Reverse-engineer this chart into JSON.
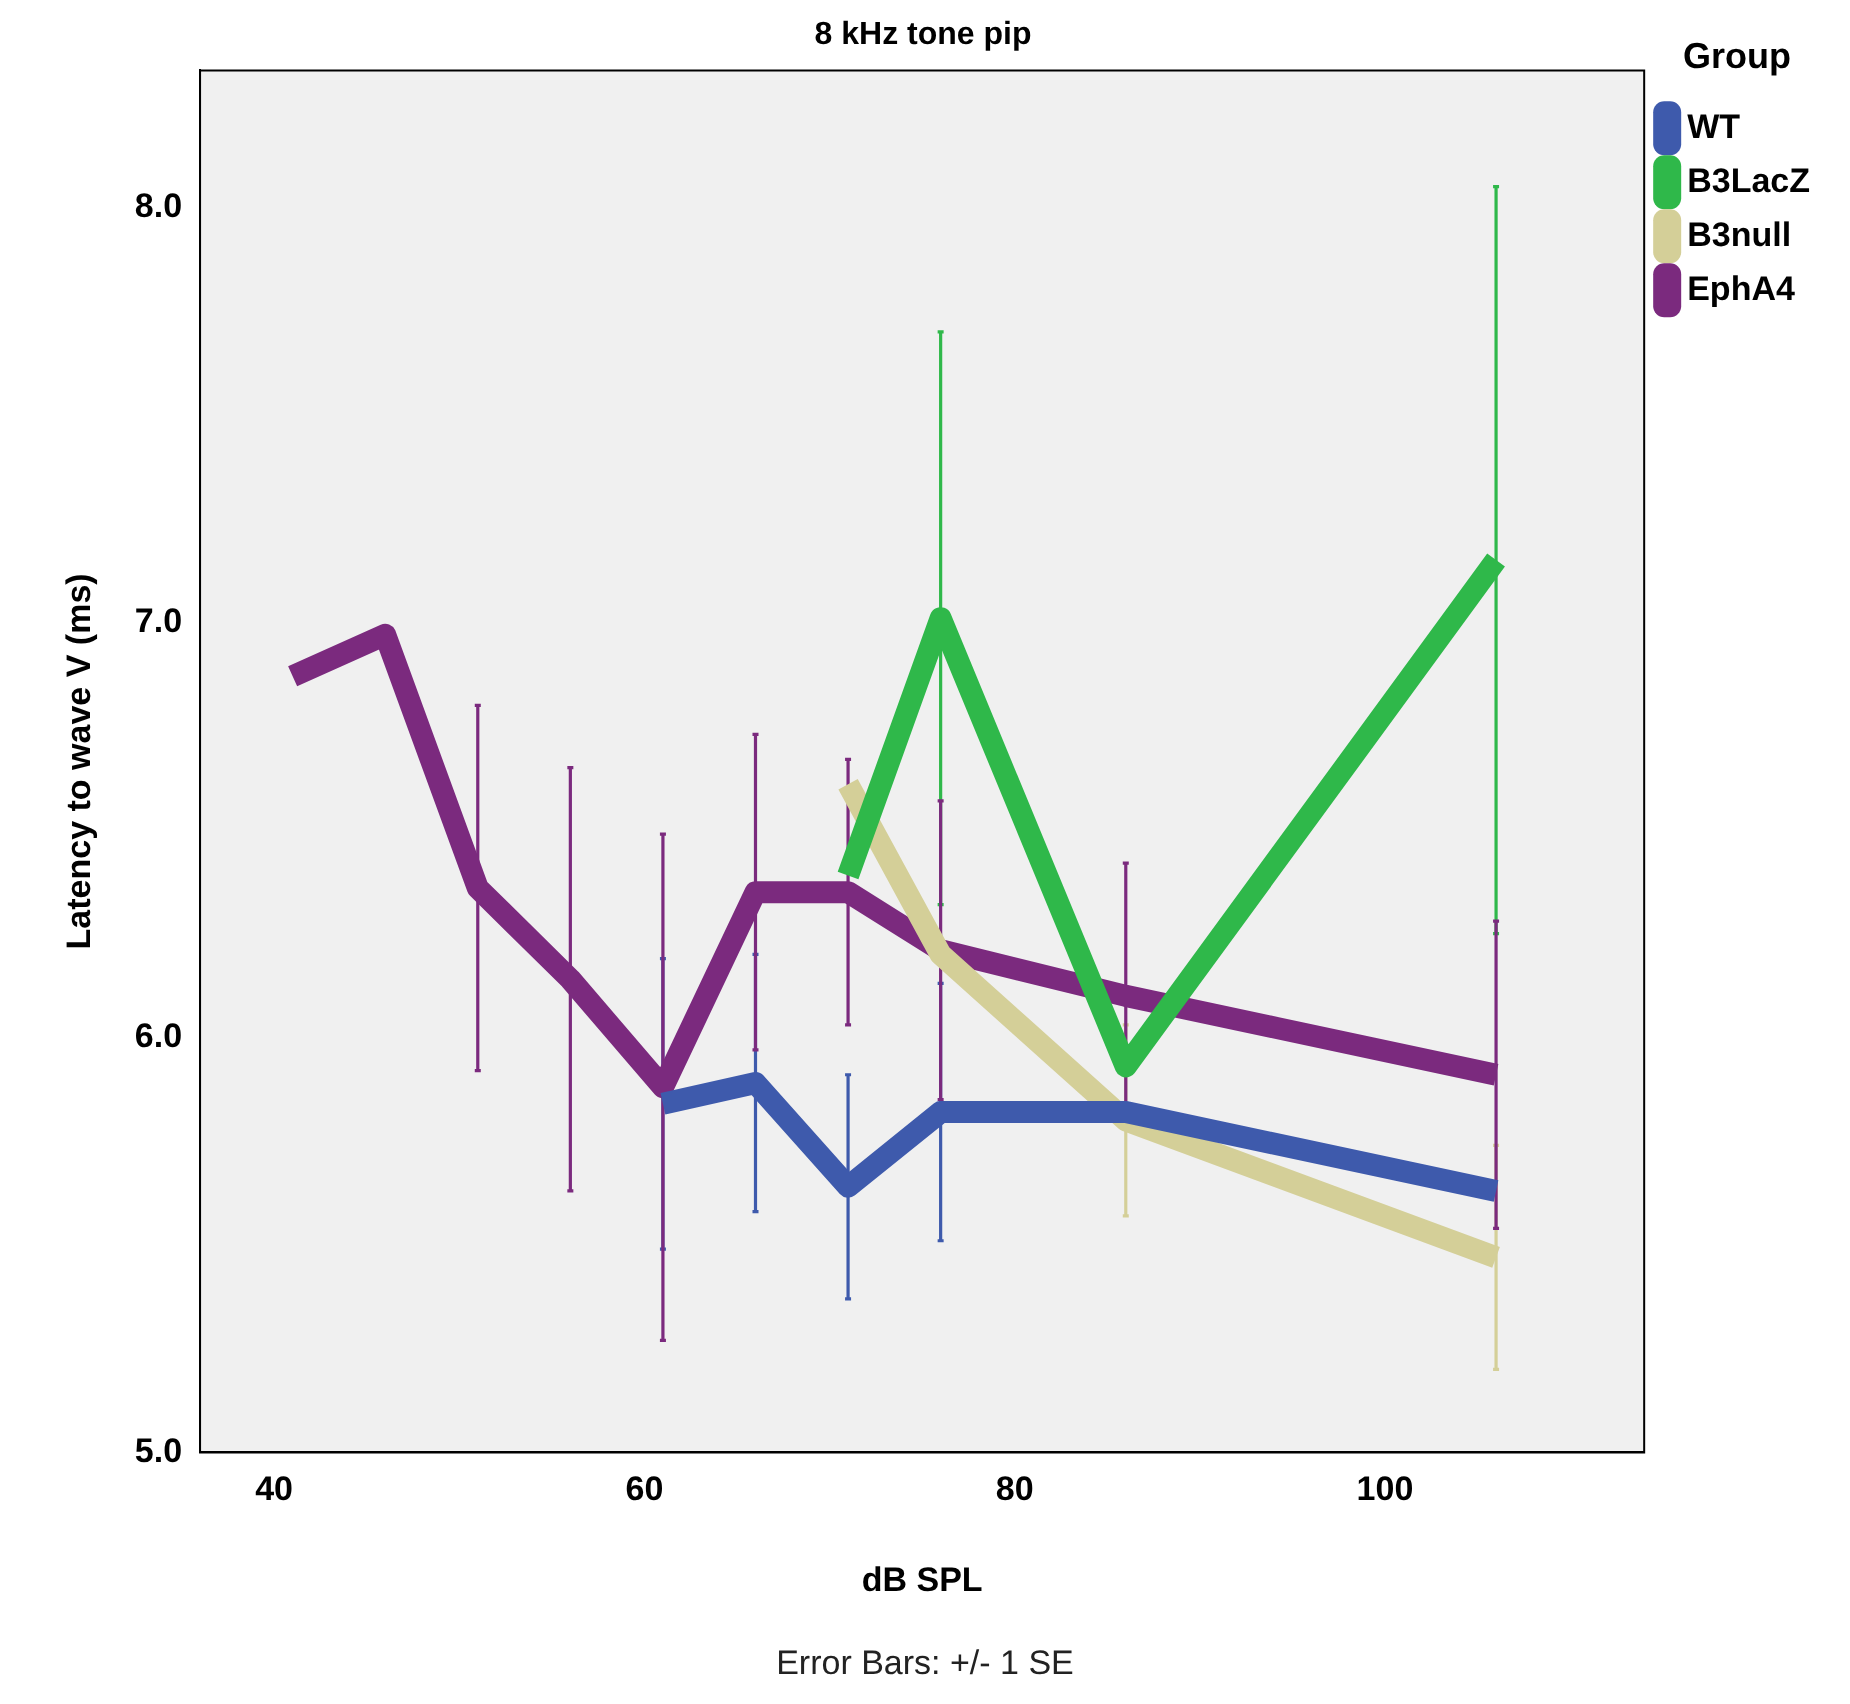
{
  "chart_data": {
    "type": "line",
    "title": "8 kHz tone pip",
    "xlabel": "dB SPL",
    "ylabel": "Latency to wave V (ms)",
    "legend_title": "Group",
    "legend": "right",
    "grid": false,
    "marker": "none",
    "line_style": "solid",
    "xlim": [
      36,
      114
    ],
    "xticks": [
      40,
      60,
      80,
      100
    ],
    "ylim": [
      5,
      8.33
    ],
    "yticks": [
      {
        "value": 5,
        "label": "5.0"
      },
      {
        "value": 6,
        "label": "6.0"
      },
      {
        "value": 7,
        "label": "7.0"
      },
      {
        "value": 8,
        "label": "8.0"
      }
    ],
    "series": [
      {
        "name": "WT",
        "color": "#3e5aac",
        "x": [
          61,
          66,
          71,
          76,
          86,
          106
        ],
        "values": [
          5.84,
          5.89,
          5.64,
          5.82,
          5.82,
          5.63
        ],
        "errors": [
          0.35,
          0.31,
          0.27,
          0.31,
          null,
          null
        ]
      },
      {
        "name": "B3LacZ",
        "color": "#2fb84a",
        "x": [
          71,
          76,
          86,
          106
        ],
        "values": [
          6.39,
          7.01,
          5.93,
          7.15
        ],
        "errors": [
          null,
          0.69,
          null,
          0.9
        ]
      },
      {
        "name": "B3null",
        "color": "#d4cf98",
        "x": [
          71,
          76,
          86,
          106
        ],
        "values": [
          6.61,
          6.2,
          5.8,
          5.47
        ],
        "errors": [
          null,
          null,
          0.23,
          0.27
        ]
      },
      {
        "name": "EphA4",
        "color": "#7b2a7e",
        "x": [
          41,
          46,
          51,
          56,
          61,
          66,
          71,
          76,
          86,
          106
        ],
        "values": [
          6.87,
          6.97,
          6.36,
          6.14,
          5.88,
          6.35,
          6.35,
          6.21,
          6.1,
          5.91
        ],
        "errors": [
          null,
          null,
          0.44,
          0.51,
          0.61,
          0.38,
          0.32,
          0.36,
          0.32,
          0.37
        ]
      }
    ],
    "annotations": [
      "Error Bars: +/- 1 SE"
    ]
  }
}
